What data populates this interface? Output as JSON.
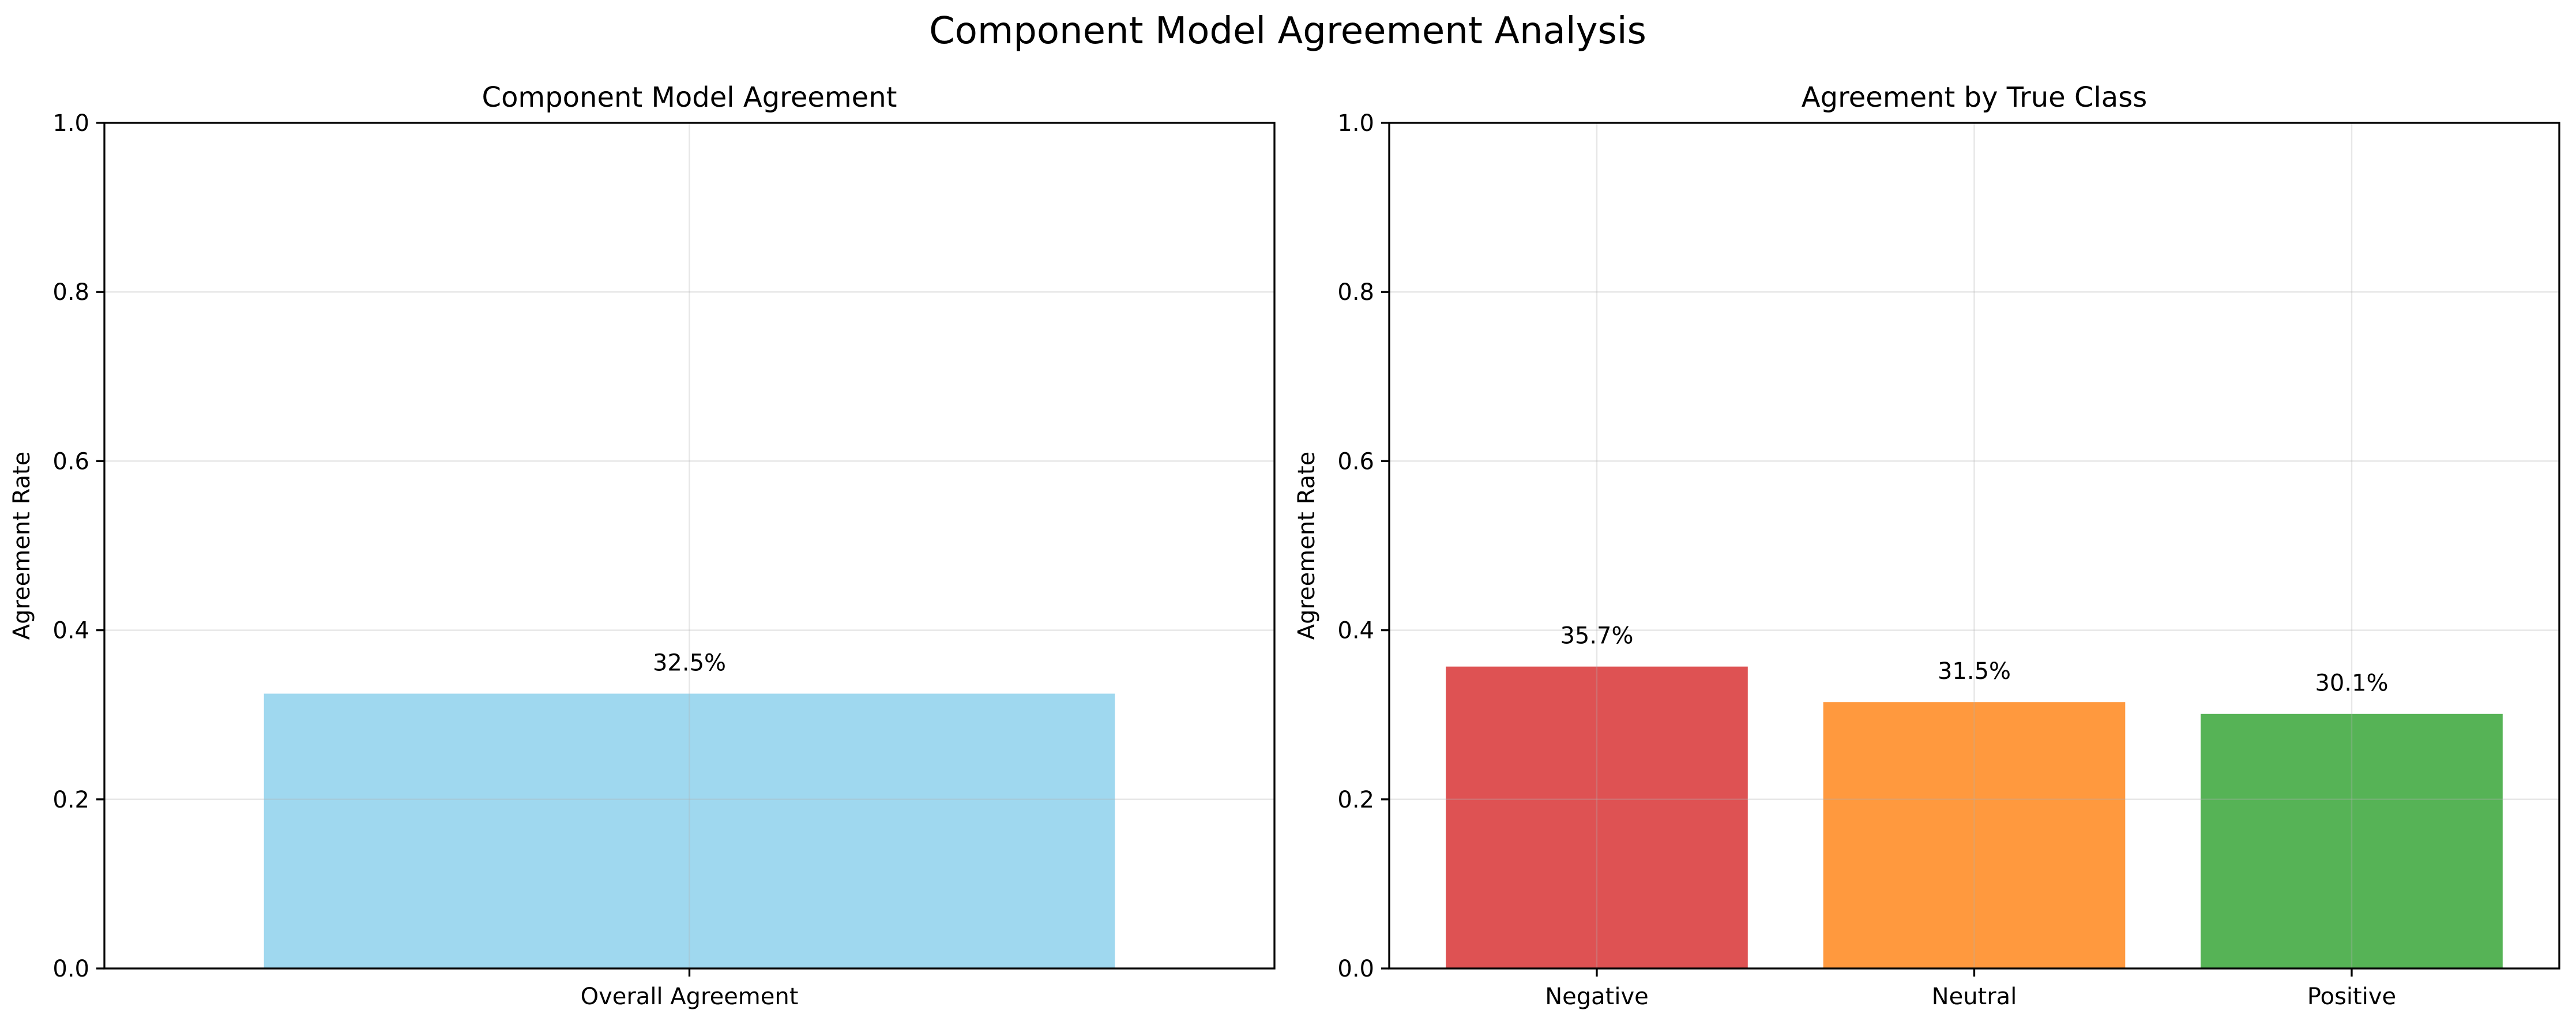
{
  "suptitle": "Component Model Agreement Analysis",
  "chart_data": [
    {
      "type": "bar",
      "title": "Component Model Agreement",
      "xlabel": "",
      "ylabel": "Agreement Rate",
      "categories": [
        "Overall Agreement"
      ],
      "values": [
        0.325
      ],
      "data_labels": [
        "32.5%"
      ],
      "colors": [
        "#87ceeb"
      ],
      "bar_alpha": 0.8,
      "ylim": [
        0,
        1.0
      ],
      "yticks": [
        "0.0",
        "0.2",
        "0.4",
        "0.6",
        "0.8",
        "1.0"
      ],
      "grid": true,
      "legend": "none"
    },
    {
      "type": "bar",
      "title": "Agreement by True Class",
      "xlabel": "",
      "ylabel": "Agreement Rate",
      "categories": [
        "Negative",
        "Neutral",
        "Positive"
      ],
      "values": [
        0.357,
        0.315,
        0.301
      ],
      "data_labels": [
        "35.7%",
        "31.5%",
        "30.1%"
      ],
      "colors": [
        "#d62728",
        "#ff7f0e",
        "#2ca02c"
      ],
      "bar_alpha": 0.8,
      "ylim": [
        0,
        1.0
      ],
      "yticks": [
        "0.0",
        "0.2",
        "0.4",
        "0.6",
        "0.8",
        "1.0"
      ],
      "grid": true,
      "legend": "none"
    }
  ]
}
